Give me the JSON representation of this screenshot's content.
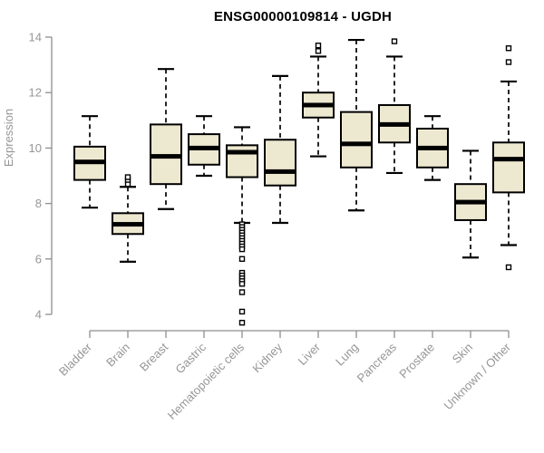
{
  "chart_data": {
    "type": "boxplot",
    "title": "ENSG00000109814 - UGDH",
    "ylabel": "Expression",
    "ylim": [
      4,
      14
    ],
    "yticks": [
      4,
      6,
      8,
      10,
      12,
      14
    ],
    "grid": false,
    "legend": "none",
    "categories": [
      "Bladder",
      "Brain",
      "Breast",
      "Gastric",
      "Hematopoietic cells",
      "Kidney",
      "Liver",
      "Lung",
      "Pancreas",
      "Prostate",
      "Skin",
      "Unknown / Other"
    ],
    "series": [
      {
        "category": "Bladder",
        "whisker_low": 7.85,
        "q1": 8.85,
        "median": 9.5,
        "q3": 10.05,
        "whisker_high": 11.15,
        "outliers": []
      },
      {
        "category": "Brain",
        "whisker_low": 5.9,
        "q1": 6.9,
        "median": 7.25,
        "q3": 7.65,
        "whisker_high": 8.6,
        "outliers": [
          8.7,
          8.85,
          8.95
        ]
      },
      {
        "category": "Breast",
        "whisker_low": 7.8,
        "q1": 8.7,
        "median": 9.7,
        "q3": 10.85,
        "whisker_high": 12.85,
        "outliers": []
      },
      {
        "category": "Gastric",
        "whisker_low": 9.0,
        "q1": 9.4,
        "median": 10.0,
        "q3": 10.5,
        "whisker_high": 11.15,
        "outliers": []
      },
      {
        "category": "Hematopoietic cells",
        "whisker_low": 7.3,
        "q1": 8.95,
        "median": 9.85,
        "q3": 10.1,
        "whisker_high": 10.75,
        "outliers": [
          7.25,
          7.15,
          7.05,
          6.95,
          6.85,
          6.75,
          6.65,
          6.55,
          6.45,
          6.35,
          6.0,
          5.5,
          5.4,
          5.3,
          5.2,
          5.1,
          4.8,
          4.1,
          3.7
        ]
      },
      {
        "category": "Kidney",
        "whisker_low": 7.3,
        "q1": 8.65,
        "median": 9.15,
        "q3": 10.3,
        "whisker_high": 12.6,
        "outliers": []
      },
      {
        "category": "Liver",
        "whisker_low": 9.7,
        "q1": 11.1,
        "median": 11.55,
        "q3": 12.0,
        "whisker_high": 13.3,
        "outliers": [
          13.7,
          13.5
        ]
      },
      {
        "category": "Lung",
        "whisker_low": 7.75,
        "q1": 9.3,
        "median": 10.15,
        "q3": 11.3,
        "whisker_high": 13.9,
        "outliers": []
      },
      {
        "category": "Pancreas",
        "whisker_low": 9.1,
        "q1": 10.2,
        "median": 10.85,
        "q3": 11.55,
        "whisker_high": 13.3,
        "outliers": [
          13.85
        ]
      },
      {
        "category": "Prostate",
        "whisker_low": 8.85,
        "q1": 9.3,
        "median": 10.0,
        "q3": 10.7,
        "whisker_high": 11.15,
        "outliers": []
      },
      {
        "category": "Skin",
        "whisker_low": 6.05,
        "q1": 7.4,
        "median": 8.05,
        "q3": 8.7,
        "whisker_high": 9.9,
        "outliers": []
      },
      {
        "category": "Unknown / Other",
        "whisker_low": 6.5,
        "q1": 8.4,
        "median": 9.6,
        "q3": 10.2,
        "whisker_high": 12.4,
        "outliers": [
          13.6,
          13.1,
          5.7
        ]
      }
    ],
    "colors": {
      "box_fill": "#EDE8D0",
      "box_border": "#000000",
      "median": "#000000",
      "axis": "#8E8E8E",
      "tick_label": "#969696",
      "title": "#000000",
      "background": "#FFFFFF"
    }
  }
}
